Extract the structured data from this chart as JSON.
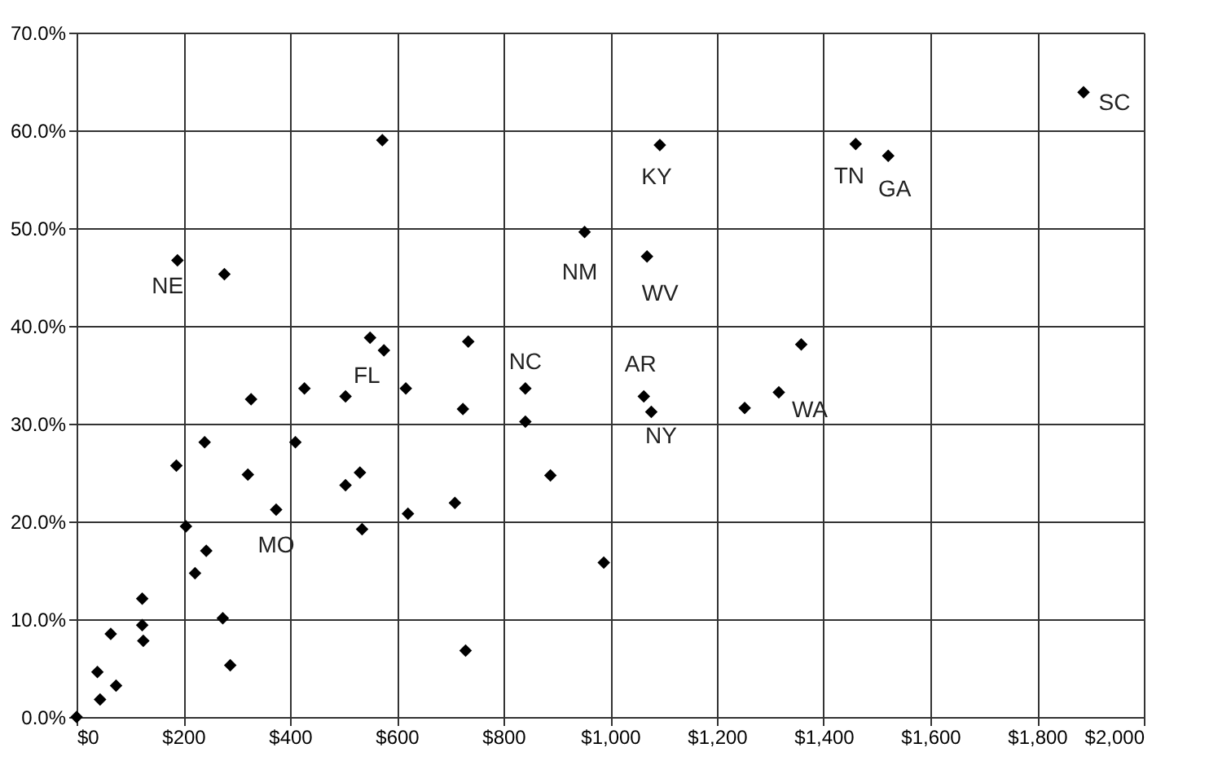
{
  "chart_data": {
    "type": "scatter",
    "marker": "diamond",
    "grid": true,
    "series": [
      {
        "color": "#000000",
        "x": [
          0,
          44,
          39,
          74,
          64,
          123,
          123,
          125,
          274,
          288,
          222,
          243,
          205,
          187,
          240,
          189,
          277,
          327,
          321,
          374,
          410,
          427,
          504,
          504,
          531,
          535,
          550,
          576,
          617,
          621,
          709,
          724,
          734,
          729,
          841,
          841,
          888,
          988,
          1069,
          1063,
          1077,
          1252,
          1316,
          1358,
          573,
          952,
          1093,
          1460,
          1521,
          1887
        ],
        "values": [
          0,
          1.8,
          4.6,
          3.2,
          8.5,
          12.1,
          9.4,
          7.8,
          10.1,
          5.3,
          14.7,
          17.0,
          19.5,
          25.7,
          28.1,
          46.7,
          45.3,
          32.5,
          24.8,
          21.2,
          28.1,
          33.6,
          32.8,
          23.7,
          25.0,
          19.2,
          38.8,
          37.5,
          33.6,
          20.8,
          21.9,
          31.5,
          38.4,
          6.8,
          33.6,
          30.2,
          24.7,
          15.8,
          47.1,
          32.8,
          31.2,
          31.6,
          33.2,
          38.1,
          59.0,
          49.6,
          58.5,
          58.6,
          57.4,
          63.9
        ]
      }
    ],
    "xlim": [
      0,
      2000
    ],
    "xticks": [
      {
        "value": 0,
        "label": "$0"
      },
      {
        "value": 200,
        "label": "$200"
      },
      {
        "value": 400,
        "label": "$400"
      },
      {
        "value": 600,
        "label": "$600"
      },
      {
        "value": 800,
        "label": "$800"
      },
      {
        "value": 1000,
        "label": "$1,000"
      },
      {
        "value": 1200,
        "label": "$1,200"
      },
      {
        "value": 1400,
        "label": "$1,400"
      },
      {
        "value": 1600,
        "label": "$1,600"
      },
      {
        "value": 1800,
        "label": "$1,800"
      },
      {
        "value": 2000,
        "label": "$2,000"
      }
    ],
    "ylim": [
      0,
      70
    ],
    "yticks": [
      {
        "value": 0,
        "label": "0.0%"
      },
      {
        "value": 10,
        "label": "10.0%"
      },
      {
        "value": 20,
        "label": "20.0%"
      },
      {
        "value": 30,
        "label": "30.0%"
      },
      {
        "value": 40,
        "label": "40.0%"
      },
      {
        "value": 50,
        "label": "50.0%"
      },
      {
        "value": 60,
        "label": "60.0%"
      },
      {
        "value": 70,
        "label": "70.0%"
      }
    ],
    "annotations": [
      {
        "text": "NE",
        "x": 189,
        "y": 46.7
      },
      {
        "text": "FL",
        "x": 550,
        "y": 38.8
      },
      {
        "text": "MO",
        "x": 374,
        "y": 21.2
      },
      {
        "text": "NC",
        "x": 841,
        "y": 33.6
      },
      {
        "text": "AR",
        "x": 1063,
        "y": 32.8
      },
      {
        "text": "NY",
        "x": 1077,
        "y": 31.2
      },
      {
        "text": "WA",
        "x": 1316,
        "y": 33.2
      },
      {
        "text": "NM",
        "x": 952,
        "y": 49.6
      },
      {
        "text": "WV",
        "x": 1069,
        "y": 47.1
      },
      {
        "text": "KY",
        "x": 1093,
        "y": 58.5
      },
      {
        "text": "TN",
        "x": 1460,
        "y": 58.6
      },
      {
        "text": "GA",
        "x": 1521,
        "y": 57.4
      },
      {
        "text": "SC",
        "x": 1887,
        "y": 63.9
      }
    ]
  }
}
